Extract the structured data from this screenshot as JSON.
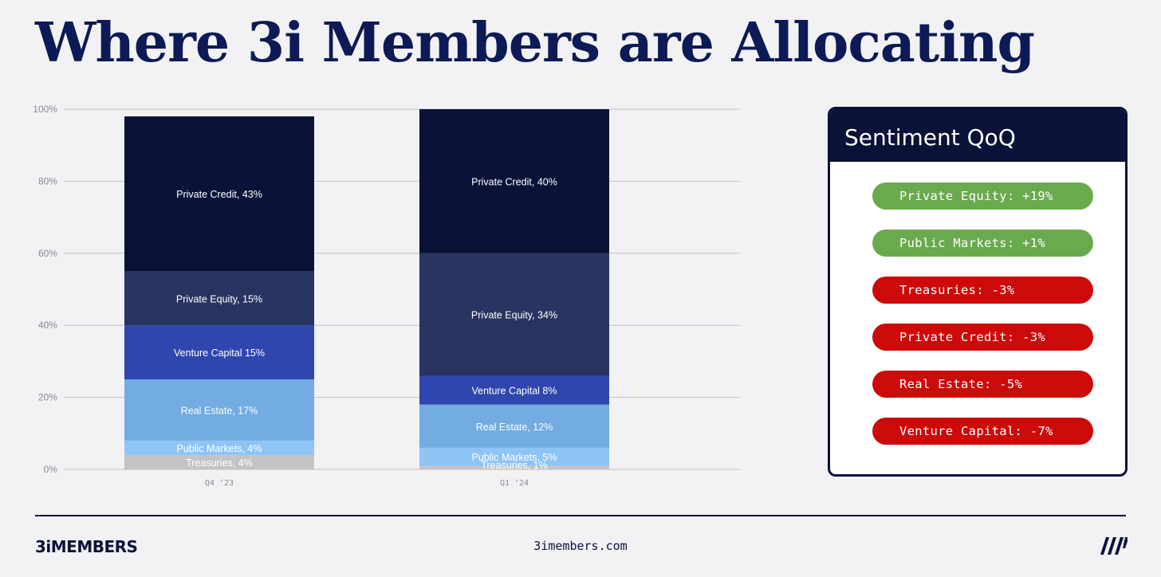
{
  "page": {
    "title": "Where 3i Members are Allocating"
  },
  "chart_data": {
    "type": "bar",
    "stacked": true,
    "ylim": [
      0,
      100
    ],
    "yticks": [
      "0%",
      "20%",
      "40%",
      "60%",
      "80%",
      "100%"
    ],
    "grid": true,
    "categories": [
      "Q4 ‘23",
      "Q1 ‘24"
    ],
    "series": [
      {
        "name": "Treasuries",
        "values": [
          4,
          1
        ],
        "color": "#c4c4c6",
        "labels": [
          "Treasuries, 4%",
          "Treasuries, 1%"
        ]
      },
      {
        "name": "Public Markets",
        "values": [
          4,
          5
        ],
        "color": "#8fc4f7",
        "labels": [
          "Public Markets, 4%",
          "Public Markets, 5%"
        ]
      },
      {
        "name": "Real Estate",
        "values": [
          17,
          12
        ],
        "color": "#72ace0",
        "labels": [
          "Real Estate, 17%",
          "Real Estate, 12%"
        ]
      },
      {
        "name": "Venture Capital",
        "values": [
          15,
          8
        ],
        "color": "#2e46ae",
        "labels": [
          "Venture Capital 15%",
          "Venture Capital 8%"
        ]
      },
      {
        "name": "Private Equity",
        "values": [
          15,
          34
        ],
        "color": "#29335f",
        "labels": [
          "Private Equity, 15%",
          "Private Equity, 34%"
        ]
      },
      {
        "name": "Private Credit",
        "values": [
          43,
          40
        ],
        "color": "#0a1238",
        "labels": [
          "Private Credit, 43%",
          "Private Credit, 40%"
        ]
      }
    ]
  },
  "sentiment": {
    "title": "Sentiment QoQ",
    "items": [
      {
        "label": "Private Equity: +19%",
        "trend": "up"
      },
      {
        "label": "Public Markets: +1%",
        "trend": "up"
      },
      {
        "label": "Treasuries: -3%",
        "trend": "down"
      },
      {
        "label": "Private Credit: -3%",
        "trend": "down"
      },
      {
        "label": "Real Estate: -5%",
        "trend": "down"
      },
      {
        "label": "Venture Capital: -7%",
        "trend": "down"
      }
    ],
    "colors": {
      "up": "#6aaa4e",
      "down": "#cc0a0a"
    }
  },
  "footer": {
    "brand": "3iMEMBERS",
    "site": "3imembers.com",
    "logo_icon": "slash-stripes-icon"
  }
}
